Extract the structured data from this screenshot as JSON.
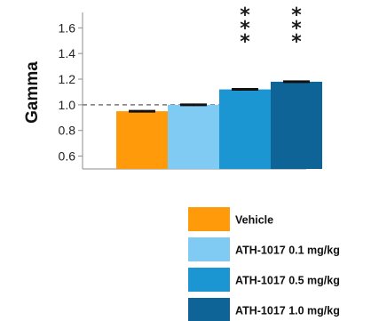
{
  "chart_data": {
    "type": "bar",
    "ylabel": "Gamma",
    "xlabel": "",
    "ylim": [
      0.5,
      1.72
    ],
    "yticks": [
      0.6,
      0.8,
      1.0,
      1.2,
      1.4,
      1.6
    ],
    "ytick_labels": [
      "0.6",
      "0.8",
      "1.0",
      "1.2",
      "1.4",
      "1.6"
    ],
    "reference_line": 1.0,
    "grid": false,
    "legend_position": "bottom-right",
    "series": [
      {
        "name": "Vehicle",
        "value": 0.95,
        "error": 0.01,
        "color": "#FF9A0A",
        "significance": ""
      },
      {
        "name": "ATH-1017 0.1 mg/kg",
        "value": 1.0,
        "error": 0.01,
        "color": "#7FCBF4",
        "significance": ""
      },
      {
        "name": "ATH-1017 0.5 mg/kg",
        "value": 1.12,
        "error": 0.01,
        "color": "#1B96D2",
        "significance": "***"
      },
      {
        "name": "ATH-1017 1.0 mg/kg",
        "value": 1.18,
        "error": 0.01,
        "color": "#0E6497",
        "significance": "***"
      }
    ]
  }
}
